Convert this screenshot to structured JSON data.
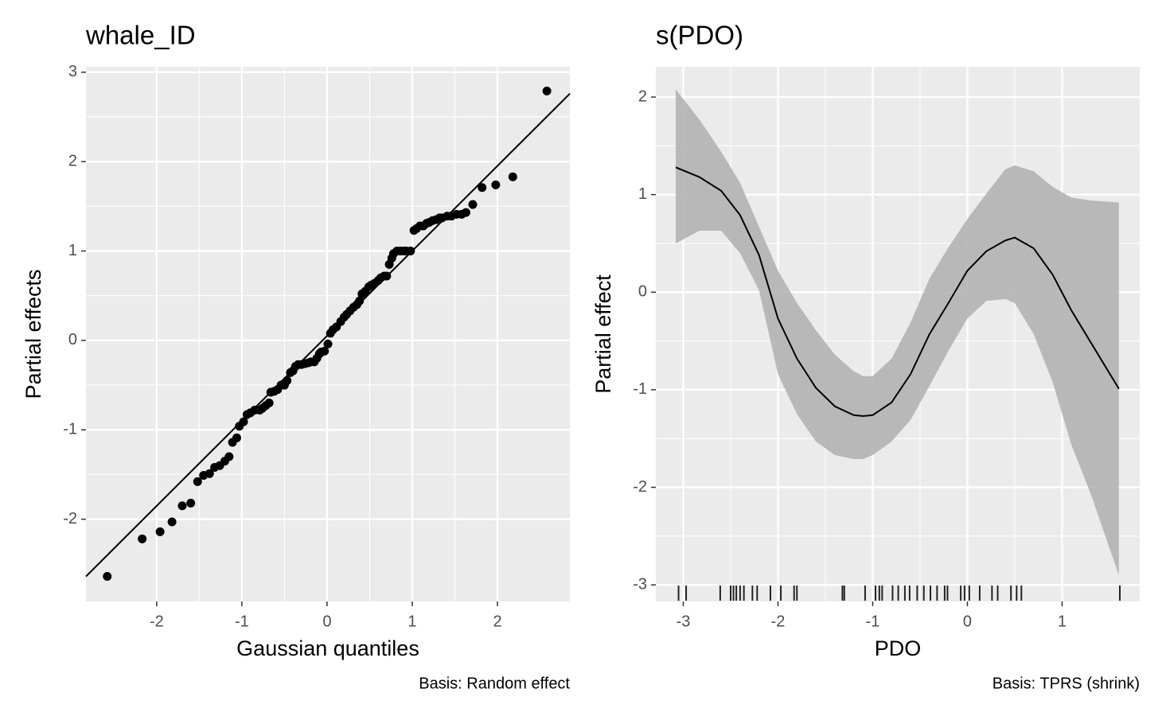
{
  "chart_data": [
    {
      "type": "scatter",
      "title": "whale_ID",
      "x_label": "Gaussian quantiles",
      "y_label": "Partial effects",
      "caption": "Basis: Random effect",
      "xlim": [
        -2.83,
        2.85
      ],
      "ylim": [
        -2.92,
        3.06
      ],
      "xticks": [
        -2,
        -1,
        0,
        1,
        2
      ],
      "yticks": [
        -2,
        -1,
        0,
        1,
        2,
        3
      ],
      "grid": true,
      "color": "#000000",
      "x": [
        -2.58,
        -2.17,
        -1.96,
        -1.82,
        -1.7,
        -1.6,
        -1.52,
        -1.45,
        -1.38,
        -1.32,
        -1.26,
        -1.2,
        -1.15,
        -1.11,
        -1.06,
        -1.03,
        -0.98,
        -0.94,
        -0.9,
        -0.85,
        -0.79,
        -0.76,
        -0.72,
        -0.68,
        -0.66,
        -0.62,
        -0.58,
        -0.54,
        -0.5,
        -0.47,
        -0.43,
        -0.4,
        -0.37,
        -0.34,
        -0.3,
        -0.26,
        -0.22,
        -0.19,
        -0.15,
        -0.12,
        -0.09,
        -0.07,
        -0.03,
        0.01,
        0.04,
        0.07,
        0.11,
        0.16,
        0.2,
        0.23,
        0.27,
        0.31,
        0.35,
        0.38,
        0.41,
        0.45,
        0.49,
        0.52,
        0.56,
        0.6,
        0.63,
        0.67,
        0.7,
        0.73,
        0.76,
        0.78,
        0.82,
        0.86,
        0.9,
        0.93,
        0.98,
        1.02,
        1.05,
        1.09,
        1.13,
        1.17,
        1.2,
        1.24,
        1.28,
        1.32,
        1.35,
        1.41,
        1.46,
        1.52,
        1.58,
        1.63,
        1.71,
        1.82,
        1.98,
        2.18,
        2.58
      ],
      "values": [
        -2.64,
        -2.22,
        -2.14,
        -2.03,
        -1.85,
        -1.82,
        -1.58,
        -1.51,
        -1.49,
        -1.42,
        -1.4,
        -1.35,
        -1.3,
        -1.14,
        -1.09,
        -0.96,
        -0.91,
        -0.83,
        -0.81,
        -0.78,
        -0.78,
        -0.76,
        -0.73,
        -0.7,
        -0.58,
        -0.57,
        -0.55,
        -0.5,
        -0.5,
        -0.45,
        -0.36,
        -0.34,
        -0.29,
        -0.27,
        -0.27,
        -0.26,
        -0.25,
        -0.24,
        -0.24,
        -0.2,
        -0.15,
        -0.13,
        -0.12,
        -0.04,
        0.08,
        0.12,
        0.15,
        0.21,
        0.26,
        0.29,
        0.33,
        0.37,
        0.4,
        0.44,
        0.52,
        0.55,
        0.6,
        0.62,
        0.64,
        0.67,
        0.7,
        0.72,
        0.72,
        0.85,
        0.92,
        0.97,
        1.0,
        1.0,
        1.0,
        1.0,
        1.0,
        1.23,
        1.25,
        1.28,
        1.28,
        1.31,
        1.32,
        1.34,
        1.35,
        1.37,
        1.37,
        1.39,
        1.39,
        1.41,
        1.41,
        1.43,
        1.52,
        1.71,
        1.74,
        1.83,
        2.79
      ],
      "reference_line": {
        "x": [
          -2.83,
          2.85
        ],
        "y": [
          -2.64,
          2.76
        ]
      }
    },
    {
      "type": "line",
      "title": "s(PDO)",
      "x_label": "PDO",
      "y_label": "Partial effect",
      "caption": "Basis: TPRS (shrink)",
      "xlim": [
        -3.29,
        1.82
      ],
      "ylim": [
        -3.17,
        2.31
      ],
      "xticks": [
        -3,
        -2,
        -1,
        0,
        1
      ],
      "yticks": [
        -3,
        -2,
        -1,
        0,
        1,
        2
      ],
      "grid": true,
      "color": "#000000",
      "band_color": "#b3b3b3",
      "x": [
        -3.08,
        -2.83,
        -2.6,
        -2.4,
        -2.2,
        -2.0,
        -1.8,
        -1.6,
        -1.4,
        -1.2,
        -1.1,
        -1.0,
        -0.8,
        -0.6,
        -0.4,
        -0.2,
        0,
        0.2,
        0.4,
        0.5,
        0.7,
        0.9,
        1.1,
        1.3,
        1.6
      ],
      "values": [
        1.28,
        1.18,
        1.04,
        0.79,
        0.38,
        -0.27,
        -0.68,
        -0.98,
        -1.17,
        -1.26,
        -1.27,
        -1.26,
        -1.13,
        -0.84,
        -0.43,
        -0.11,
        0.22,
        0.42,
        0.53,
        0.56,
        0.45,
        0.18,
        -0.19,
        -0.51,
        -0.99
      ],
      "lower": [
        0.5,
        0.63,
        0.63,
        0.4,
        0.02,
        -0.84,
        -1.25,
        -1.53,
        -1.67,
        -1.71,
        -1.71,
        -1.67,
        -1.53,
        -1.31,
        -0.96,
        -0.6,
        -0.27,
        -0.09,
        -0.07,
        -0.11,
        -0.43,
        -0.92,
        -1.57,
        -2.06,
        -2.9
      ],
      "upper": [
        2.08,
        1.77,
        1.44,
        1.12,
        0.67,
        0.22,
        -0.11,
        -0.39,
        -0.64,
        -0.81,
        -0.86,
        -0.86,
        -0.68,
        -0.31,
        0.14,
        0.46,
        0.75,
        1.01,
        1.26,
        1.3,
        1.24,
        1.08,
        0.97,
        0.94,
        0.92
      ],
      "rug": [
        -3.05,
        -2.97,
        -2.61,
        -2.5,
        -2.47,
        -2.44,
        -2.4,
        -2.36,
        -2.27,
        -2.22,
        -2.08,
        -1.97,
        -1.83,
        -1.8,
        -1.32,
        -1.3,
        -1.08,
        -0.97,
        -0.93,
        -0.9,
        -0.79,
        -0.73,
        -0.66,
        -0.61,
        -0.53,
        -0.46,
        -0.39,
        -0.32,
        -0.24,
        -0.21,
        -0.07,
        -0.03,
        0.02,
        0.13,
        0.26,
        0.32,
        0.46,
        0.52,
        0.57,
        1.61
      ]
    }
  ]
}
